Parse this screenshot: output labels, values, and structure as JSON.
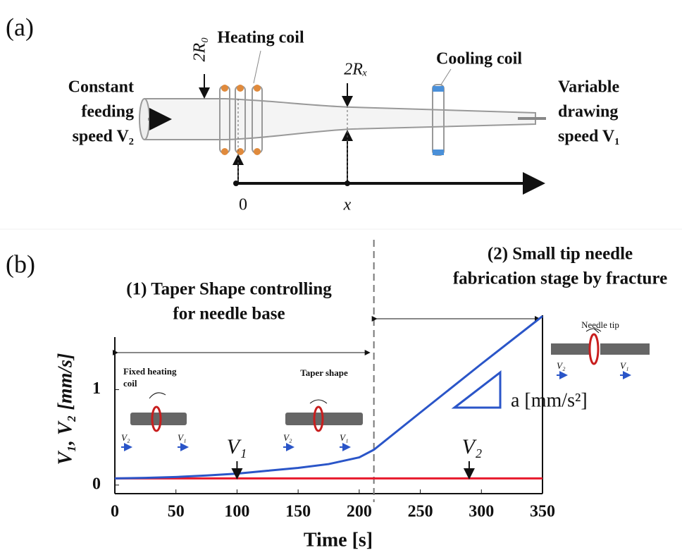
{
  "panel_a": {
    "label": "(a)",
    "heating_coil": "Heating coil",
    "cooling_coil": "Cooling coil",
    "radius_0": "2R₀",
    "radius_x": "2Rₓ",
    "left_text": [
      "Constant",
      "feeding",
      "speed V₂"
    ],
    "right_text": [
      "Variable",
      "drawing",
      "speed V₁"
    ],
    "axis_origin": "0",
    "axis_position": "x"
  },
  "chart_data": {
    "type": "line",
    "panel_label": "(b)",
    "xlabel": "Time [s]",
    "ylabel": "V₁, V₂ [mm/s]",
    "x": [
      0,
      25,
      50,
      75,
      100,
      125,
      150,
      175,
      200,
      212,
      250,
      300,
      350
    ],
    "series": [
      {
        "name": "V₁",
        "color": "#2a55c8",
        "values": [
          0.07,
          0.075,
          0.085,
          0.1,
          0.12,
          0.15,
          0.18,
          0.22,
          0.29,
          0.37,
          0.76,
          1.27,
          1.77
        ]
      },
      {
        "name": "V₂",
        "color": "#e8192c",
        "values": [
          0.07,
          0.07,
          0.07,
          0.07,
          0.07,
          0.07,
          0.07,
          0.07,
          0.07,
          0.07,
          0.07,
          0.07,
          0.07
        ]
      }
    ],
    "xlim": [
      0,
      350
    ],
    "ylim": [
      -0.09,
      1.78
    ],
    "xticks": [
      0,
      50,
      100,
      150,
      200,
      250,
      300,
      350
    ],
    "yticks": [
      0,
      1
    ],
    "stage_boundary": 212,
    "stage_1": [
      "(1) Taper Shape controlling",
      "for needle base"
    ],
    "stage_2": [
      "(2) Small tip needle",
      "fabrication stage by fracture"
    ],
    "slope_label": "a [mm/s²]",
    "needle_tip": "Needle tip",
    "fixed_heating_coil": [
      "Fixed heating",
      "coil"
    ],
    "taper_shape": "Taper shape",
    "inset_labels": [
      "V₂",
      "V₁"
    ]
  }
}
